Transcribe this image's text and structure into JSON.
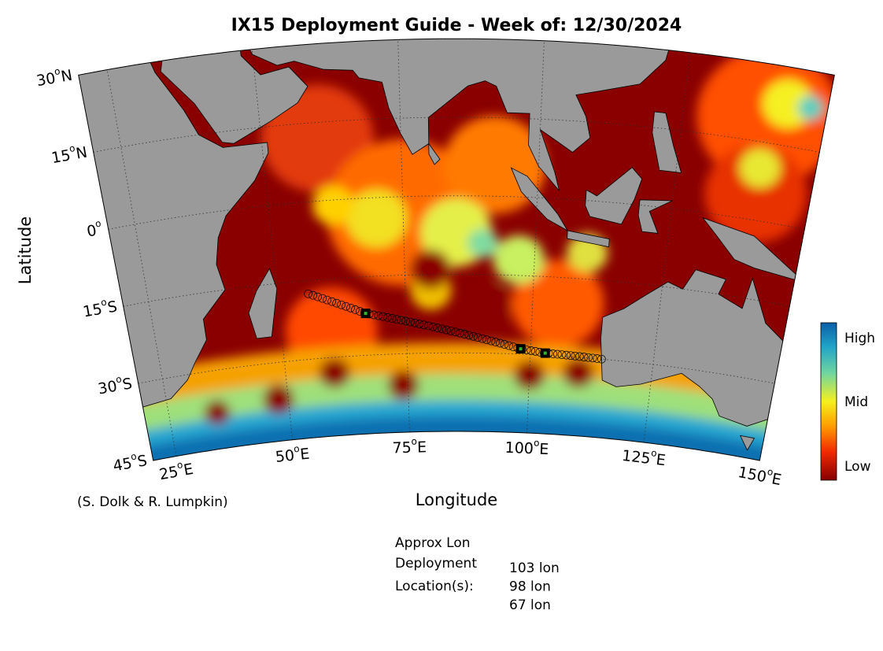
{
  "title": "IX15 Deployment Guide - Week of: 12/30/2024",
  "axes": {
    "y_label": "Latitude",
    "x_label": "Longitude",
    "lat_ticks": [
      {
        "value": 30,
        "num": "30",
        "sup": "o",
        "hem": "N"
      },
      {
        "value": 15,
        "num": "15",
        "sup": "o",
        "hem": "N"
      },
      {
        "value": 0,
        "num": "0",
        "sup": "o"
      },
      {
        "value": -15,
        "num": "15",
        "sup": "o",
        "hem": "S"
      },
      {
        "value": -30,
        "num": "30",
        "sup": "o",
        "hem": "S"
      },
      {
        "value": -45,
        "num": "45",
        "sup": "o",
        "hem": "S"
      }
    ],
    "lon_ticks": [
      {
        "value": 25,
        "num": "25",
        "sup": "o",
        "hem": "E"
      },
      {
        "value": 50,
        "num": "50",
        "sup": "o",
        "hem": "E"
      },
      {
        "value": 75,
        "num": "75",
        "sup": "o",
        "hem": "E"
      },
      {
        "value": 100,
        "num": "100",
        "sup": "o",
        "hem": "E"
      },
      {
        "value": 125,
        "num": "125",
        "sup": "o",
        "hem": "E"
      },
      {
        "value": 150,
        "num": "150",
        "sup": "o",
        "hem": "E"
      }
    ]
  },
  "colorbar": {
    "labels": [
      "High",
      "Mid",
      "Low"
    ]
  },
  "credit": "(S. Dolk & R. Lumpkin)",
  "deployment": {
    "heading": [
      "Approx Lon",
      "Deployment",
      "Location(s):"
    ],
    "values": [
      103,
      98,
      67
    ],
    "value_labels": [
      "103 lon",
      "98 lon",
      "67 lon"
    ]
  }
}
